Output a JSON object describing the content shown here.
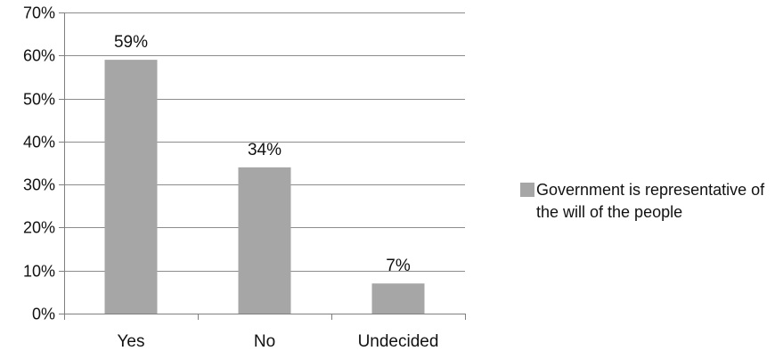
{
  "chart_data": {
    "type": "bar",
    "categories": [
      "Yes",
      "No",
      "Undecided"
    ],
    "series": [
      {
        "name": "Government is representative of the will of the people",
        "values": [
          59,
          34,
          7
        ]
      }
    ],
    "data_labels": [
      "59%",
      "34%",
      "7%"
    ],
    "yticks": [
      0,
      10,
      20,
      30,
      40,
      50,
      60,
      70
    ],
    "ytick_labels": [
      "0%",
      "10%",
      "20%",
      "30%",
      "40%",
      "50%",
      "60%",
      "70%"
    ],
    "ylim": [
      0,
      70
    ],
    "grid": true,
    "legend_position": "right",
    "colors": {
      "bar": "#a6a6a7",
      "grid": "#8c8c8c",
      "axis": "#7f7f7f"
    }
  }
}
